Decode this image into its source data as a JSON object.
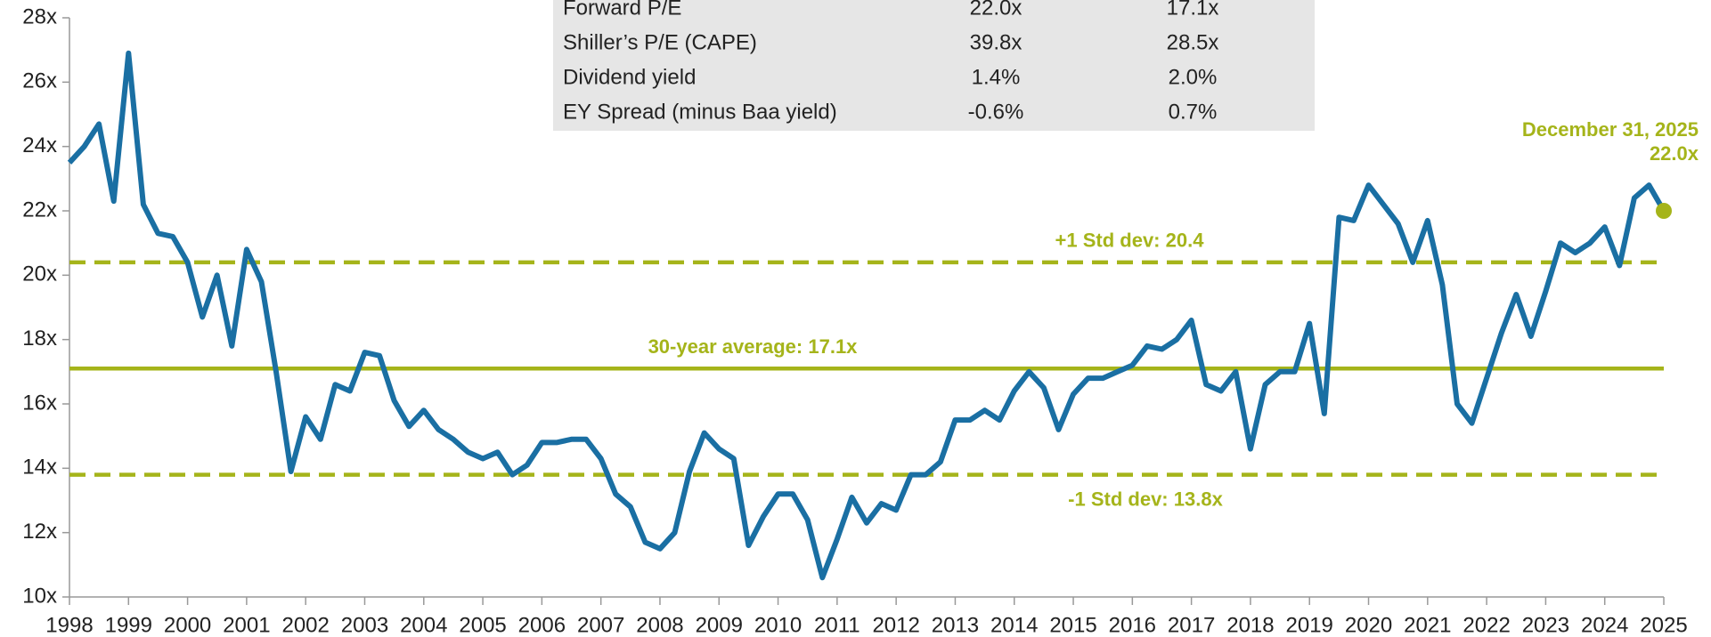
{
  "chart_data": {
    "type": "line",
    "x": [
      1998,
      1998.25,
      1998.5,
      1998.75,
      1999,
      1999.25,
      1999.5,
      1999.75,
      2000,
      2000.25,
      2000.5,
      2000.75,
      2001,
      2001.25,
      2001.5,
      2001.75,
      2002,
      2002.25,
      2002.5,
      2002.75,
      2003,
      2003.25,
      2003.5,
      2003.75,
      2004,
      2004.25,
      2004.5,
      2004.75,
      2005,
      2005.25,
      2005.5,
      2005.75,
      2006,
      2006.25,
      2006.5,
      2006.75,
      2007,
      2007.25,
      2007.5,
      2007.75,
      2008,
      2008.25,
      2008.5,
      2008.75,
      2009,
      2009.25,
      2009.5,
      2009.75,
      2010,
      2010.25,
      2010.5,
      2010.75,
      2011,
      2011.25,
      2011.5,
      2011.75,
      2012,
      2012.25,
      2012.5,
      2012.75,
      2013,
      2013.25,
      2013.5,
      2013.75,
      2014,
      2014.25,
      2014.5,
      2014.75,
      2015,
      2015.25,
      2015.5,
      2015.75,
      2016,
      2016.25,
      2016.5,
      2016.75,
      2017,
      2017.25,
      2017.5,
      2017.75,
      2018,
      2018.25,
      2018.5,
      2018.75,
      2019,
      2019.25,
      2019.5,
      2019.75,
      2020,
      2020.25,
      2020.5,
      2020.75,
      2021,
      2021.25,
      2021.5,
      2021.75,
      2022,
      2022.25,
      2022.5,
      2022.75,
      2023,
      2023.25,
      2023.5,
      2023.75,
      2024,
      2024.25,
      2024.5,
      2024.75,
      2025
    ],
    "values": [
      23.5,
      24.0,
      24.7,
      22.3,
      26.9,
      22.2,
      21.3,
      21.2,
      20.4,
      18.7,
      20.0,
      17.8,
      20.8,
      19.8,
      17.0,
      13.9,
      15.6,
      14.9,
      16.6,
      16.4,
      17.6,
      17.5,
      16.1,
      15.3,
      15.8,
      15.2,
      14.9,
      14.5,
      14.3,
      14.5,
      13.8,
      14.1,
      14.8,
      14.8,
      14.9,
      14.9,
      14.3,
      13.2,
      12.8,
      11.7,
      11.5,
      12.0,
      13.9,
      15.1,
      14.6,
      14.3,
      11.6,
      12.5,
      13.2,
      13.2,
      12.4,
      10.6,
      11.8,
      13.1,
      12.3,
      12.9,
      12.7,
      13.8,
      13.8,
      14.2,
      15.5,
      15.5,
      15.8,
      15.5,
      16.4,
      17.0,
      16.5,
      15.2,
      16.3,
      16.8,
      16.8,
      17.0,
      17.2,
      17.8,
      17.7,
      18.0,
      18.6,
      16.6,
      16.4,
      17.0,
      14.6,
      16.6,
      17.0,
      17.0,
      18.5,
      15.7,
      21.8,
      21.7,
      22.8,
      22.2,
      21.6,
      20.4,
      21.7,
      19.7,
      16.0,
      15.4,
      16.8,
      18.2,
      19.4,
      18.1,
      19.5,
      21.0,
      20.7,
      21.0,
      21.5,
      20.3,
      22.4,
      22.8,
      22.0
    ],
    "color": "#1a6fa3",
    "xlim": [
      1998,
      2025
    ],
    "xticks": [
      1998,
      1999,
      2000,
      2001,
      2002,
      2003,
      2004,
      2005,
      2006,
      2007,
      2008,
      2009,
      2010,
      2011,
      2012,
      2013,
      2014,
      2015,
      2016,
      2017,
      2018,
      2019,
      2020,
      2021,
      2022,
      2023,
      2024,
      2025
    ],
    "ylim": [
      10,
      28
    ],
    "yticks": [
      {
        "value": 10,
        "label": "10x"
      },
      {
        "value": 12,
        "label": "12x"
      },
      {
        "value": 14,
        "label": "14x"
      },
      {
        "value": 16,
        "label": "16x"
      },
      {
        "value": 18,
        "label": "18x"
      },
      {
        "value": 20,
        "label": "20x"
      },
      {
        "value": 22,
        "label": "22x"
      },
      {
        "value": 24,
        "label": "24x"
      },
      {
        "value": 26,
        "label": "26x"
      },
      {
        "value": 28,
        "label": "28x"
      }
    ],
    "reference_color": "#a5b41a",
    "reference_lines": [
      {
        "value": 20.4,
        "label": "+1 Std dev: 20.4",
        "style": "dashed"
      },
      {
        "value": 17.1,
        "label": "30-year average: 17.1x",
        "style": "solid"
      },
      {
        "value": 13.8,
        "label": "-1 Std dev: 13.8x",
        "style": "dashed"
      }
    ],
    "annotation": {
      "date": "December 31, 2025",
      "label": "22.0x"
    }
  },
  "table": {
    "rows": [
      [
        "Forward P/E",
        "22.0x",
        "17.1x"
      ],
      [
        "Shiller’s P/E (CAPE)",
        "39.8x",
        "28.5x"
      ],
      [
        "Dividend yield",
        "1.4%",
        "2.0%"
      ],
      [
        "EY Spread (minus Baa yield)",
        "-0.6%",
        "0.7%"
      ]
    ]
  }
}
